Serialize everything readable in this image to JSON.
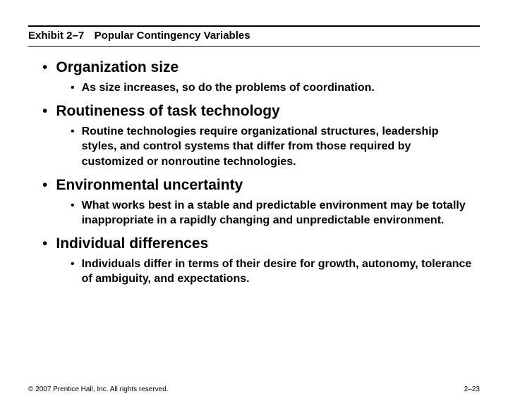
{
  "exhibit": {
    "label": "Exhibit 2–7",
    "title": "Popular Contingency Variables"
  },
  "items": [
    {
      "heading": "Organization size",
      "sub": "As size increases, so do the problems of coordination."
    },
    {
      "heading": "Routineness of task technology",
      "sub": "Routine technologies require organizational structures, leadership styles, and control systems that differ from those required by customized or nonroutine technologies."
    },
    {
      "heading": "Environmental uncertainty",
      "sub": "What works best in a stable and predictable environment may be totally inappropriate in a rapidly changing and unpredictable environment."
    },
    {
      "heading": "Individual differences",
      "sub": "Individuals differ in terms of their desire for growth, autonomy, tolerance of ambiguity, and expectations."
    }
  ],
  "footer": {
    "copyright": "© 2007 Prentice Hall, Inc. All rights reserved.",
    "page": "2–23"
  },
  "style": {
    "background_color": "#ffffff",
    "text_color": "#000000",
    "header_border_top": "2px solid #000",
    "header_border_bottom": "1px solid #000",
    "main_fontsize": 21,
    "sub_fontsize": 16,
    "header_fontsize": 15,
    "footer_fontsize": 10,
    "font_family": "Arial"
  }
}
